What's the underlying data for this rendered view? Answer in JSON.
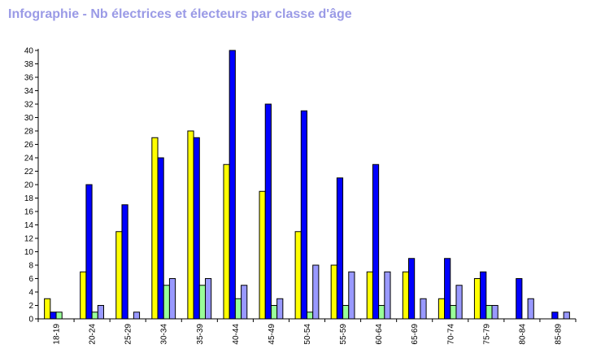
{
  "title": "Infographie - Nb électrices et électeurs par classe d'âge",
  "chart_data": {
    "type": "bar",
    "categories": [
      "18-19",
      "20-24",
      "25-29",
      "30-34",
      "35-39",
      "40-44",
      "45-49",
      "50-54",
      "55-59",
      "60-64",
      "65-69",
      "70-74",
      "75-79",
      "80-84",
      "85-89"
    ],
    "series": [
      {
        "color": "#ffff00",
        "values": [
          3,
          7,
          13,
          27,
          28,
          23,
          19,
          13,
          8,
          7,
          7,
          3,
          6,
          0,
          0
        ]
      },
      {
        "color": "#0000ff",
        "values": [
          1,
          20,
          17,
          24,
          27,
          40,
          32,
          31,
          21,
          23,
          9,
          9,
          7,
          6,
          1
        ]
      },
      {
        "color": "#99ff99",
        "values": [
          1,
          1,
          0,
          5,
          5,
          3,
          2,
          1,
          2,
          2,
          0,
          2,
          2,
          0,
          0
        ]
      },
      {
        "color": "#9999ff",
        "values": [
          0,
          2,
          1,
          6,
          6,
          5,
          3,
          8,
          7,
          7,
          3,
          5,
          2,
          3,
          1
        ]
      }
    ],
    "ylim": [
      0,
      40
    ],
    "yticks": [
      0,
      2,
      4,
      6,
      8,
      10,
      12,
      14,
      16,
      18,
      20,
      22,
      24,
      26,
      28,
      30,
      32,
      34,
      36,
      38,
      40
    ],
    "xlabel": "",
    "ylabel": "",
    "grid": false,
    "legend": "none"
  }
}
